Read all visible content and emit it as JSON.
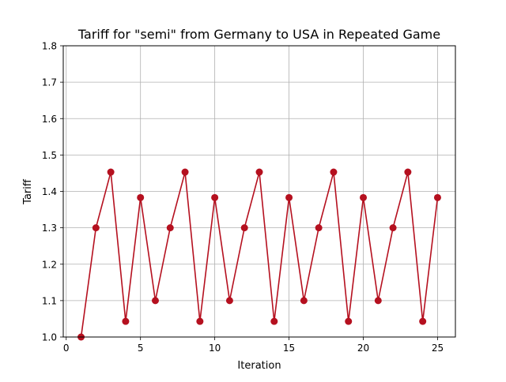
{
  "chart_data": {
    "type": "line",
    "title": "Tariff for \"semi\" from Germany to USA in Repeated Game",
    "xlabel": "Iteration",
    "ylabel": "Tariff",
    "xlim": [
      -0.2,
      26.2
    ],
    "ylim": [
      1.0,
      1.8
    ],
    "xticks": [
      0,
      5,
      10,
      15,
      20,
      25
    ],
    "yticks": [
      1.0,
      1.1,
      1.2,
      1.3,
      1.4,
      1.5,
      1.6,
      1.7,
      1.8
    ],
    "xtick_labels": [
      "0",
      "5",
      "10",
      "15",
      "20",
      "25"
    ],
    "ytick_labels": [
      "1.0",
      "1.1",
      "1.2",
      "1.3",
      "1.4",
      "1.5",
      "1.6",
      "1.7",
      "1.8"
    ],
    "grid": true,
    "series": [
      {
        "color": "#b5101f",
        "marker": "circle",
        "x": [
          1,
          2,
          3,
          4,
          5,
          6,
          7,
          8,
          9,
          10,
          11,
          12,
          13,
          14,
          15,
          16,
          17,
          18,
          19,
          20,
          21,
          22,
          23,
          24,
          25
        ],
        "y": [
          1.0,
          1.3,
          1.453,
          1.043,
          1.383,
          1.1,
          1.3,
          1.453,
          1.043,
          1.383,
          1.1,
          1.3,
          1.453,
          1.043,
          1.383,
          1.1,
          1.3,
          1.453,
          1.043,
          1.383,
          1.1,
          1.3,
          1.453,
          1.043,
          1.383
        ]
      }
    ]
  }
}
